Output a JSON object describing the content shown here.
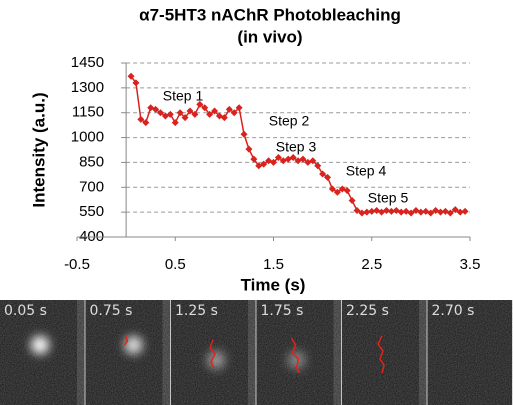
{
  "chart_data": {
    "type": "line",
    "title": "α7-5HT3 nAChR Photobleaching",
    "subtitle": "(in vivo)",
    "x_label": "Time (s)",
    "y_label": "Intensity (a.u.)",
    "xlim": [
      -0.5,
      3.5
    ],
    "xticks": [
      -0.5,
      0.5,
      1.5,
      2.5,
      3.5
    ],
    "ylim": [
      400,
      1450
    ],
    "yticks": [
      400,
      550,
      700,
      850,
      1000,
      1150,
      1300,
      1450
    ],
    "grid": true,
    "x": [
      0.05,
      0.1,
      0.15,
      0.2,
      0.25,
      0.3,
      0.35,
      0.4,
      0.45,
      0.5,
      0.55,
      0.6,
      0.65,
      0.7,
      0.75,
      0.8,
      0.85,
      0.9,
      0.95,
      1.0,
      1.05,
      1.1,
      1.15,
      1.2,
      1.25,
      1.3,
      1.35,
      1.4,
      1.45,
      1.5,
      1.55,
      1.6,
      1.65,
      1.7,
      1.75,
      1.8,
      1.85,
      1.9,
      1.95,
      2.0,
      2.05,
      2.1,
      2.15,
      2.2,
      2.25,
      2.3,
      2.35,
      2.4,
      2.45,
      2.5,
      2.55,
      2.6,
      2.65,
      2.7,
      2.75,
      2.8,
      2.85,
      2.9,
      2.95,
      3.0,
      3.05,
      3.1,
      3.15,
      3.2,
      3.25,
      3.3,
      3.35,
      3.4,
      3.45
    ],
    "series": [
      {
        "color": "#d8231f",
        "values": [
          1370,
          1330,
          1110,
          1090,
          1180,
          1170,
          1150,
          1130,
          1140,
          1090,
          1150,
          1120,
          1160,
          1140,
          1200,
          1180,
          1140,
          1160,
          1130,
          1120,
          1170,
          1150,
          1180,
          1020,
          930,
          870,
          830,
          840,
          860,
          850,
          880,
          860,
          870,
          880,
          860,
          870,
          850,
          860,
          830,
          780,
          760,
          690,
          670,
          690,
          680,
          620,
          560,
          545,
          550,
          555,
          560,
          550,
          560,
          555,
          560,
          550,
          555,
          545,
          560,
          550,
          555,
          545,
          560,
          550,
          555,
          545,
          565,
          550,
          555
        ]
      }
    ],
    "annotations": [
      "Step 1",
      "Step 2",
      "Step 3",
      "Step 4",
      "Step 5"
    ]
  },
  "frames": {
    "labels": [
      "0.05 s",
      "0.75 s",
      "1.25 s",
      "1.75 s",
      "2.25 s",
      "2.70 s"
    ]
  }
}
